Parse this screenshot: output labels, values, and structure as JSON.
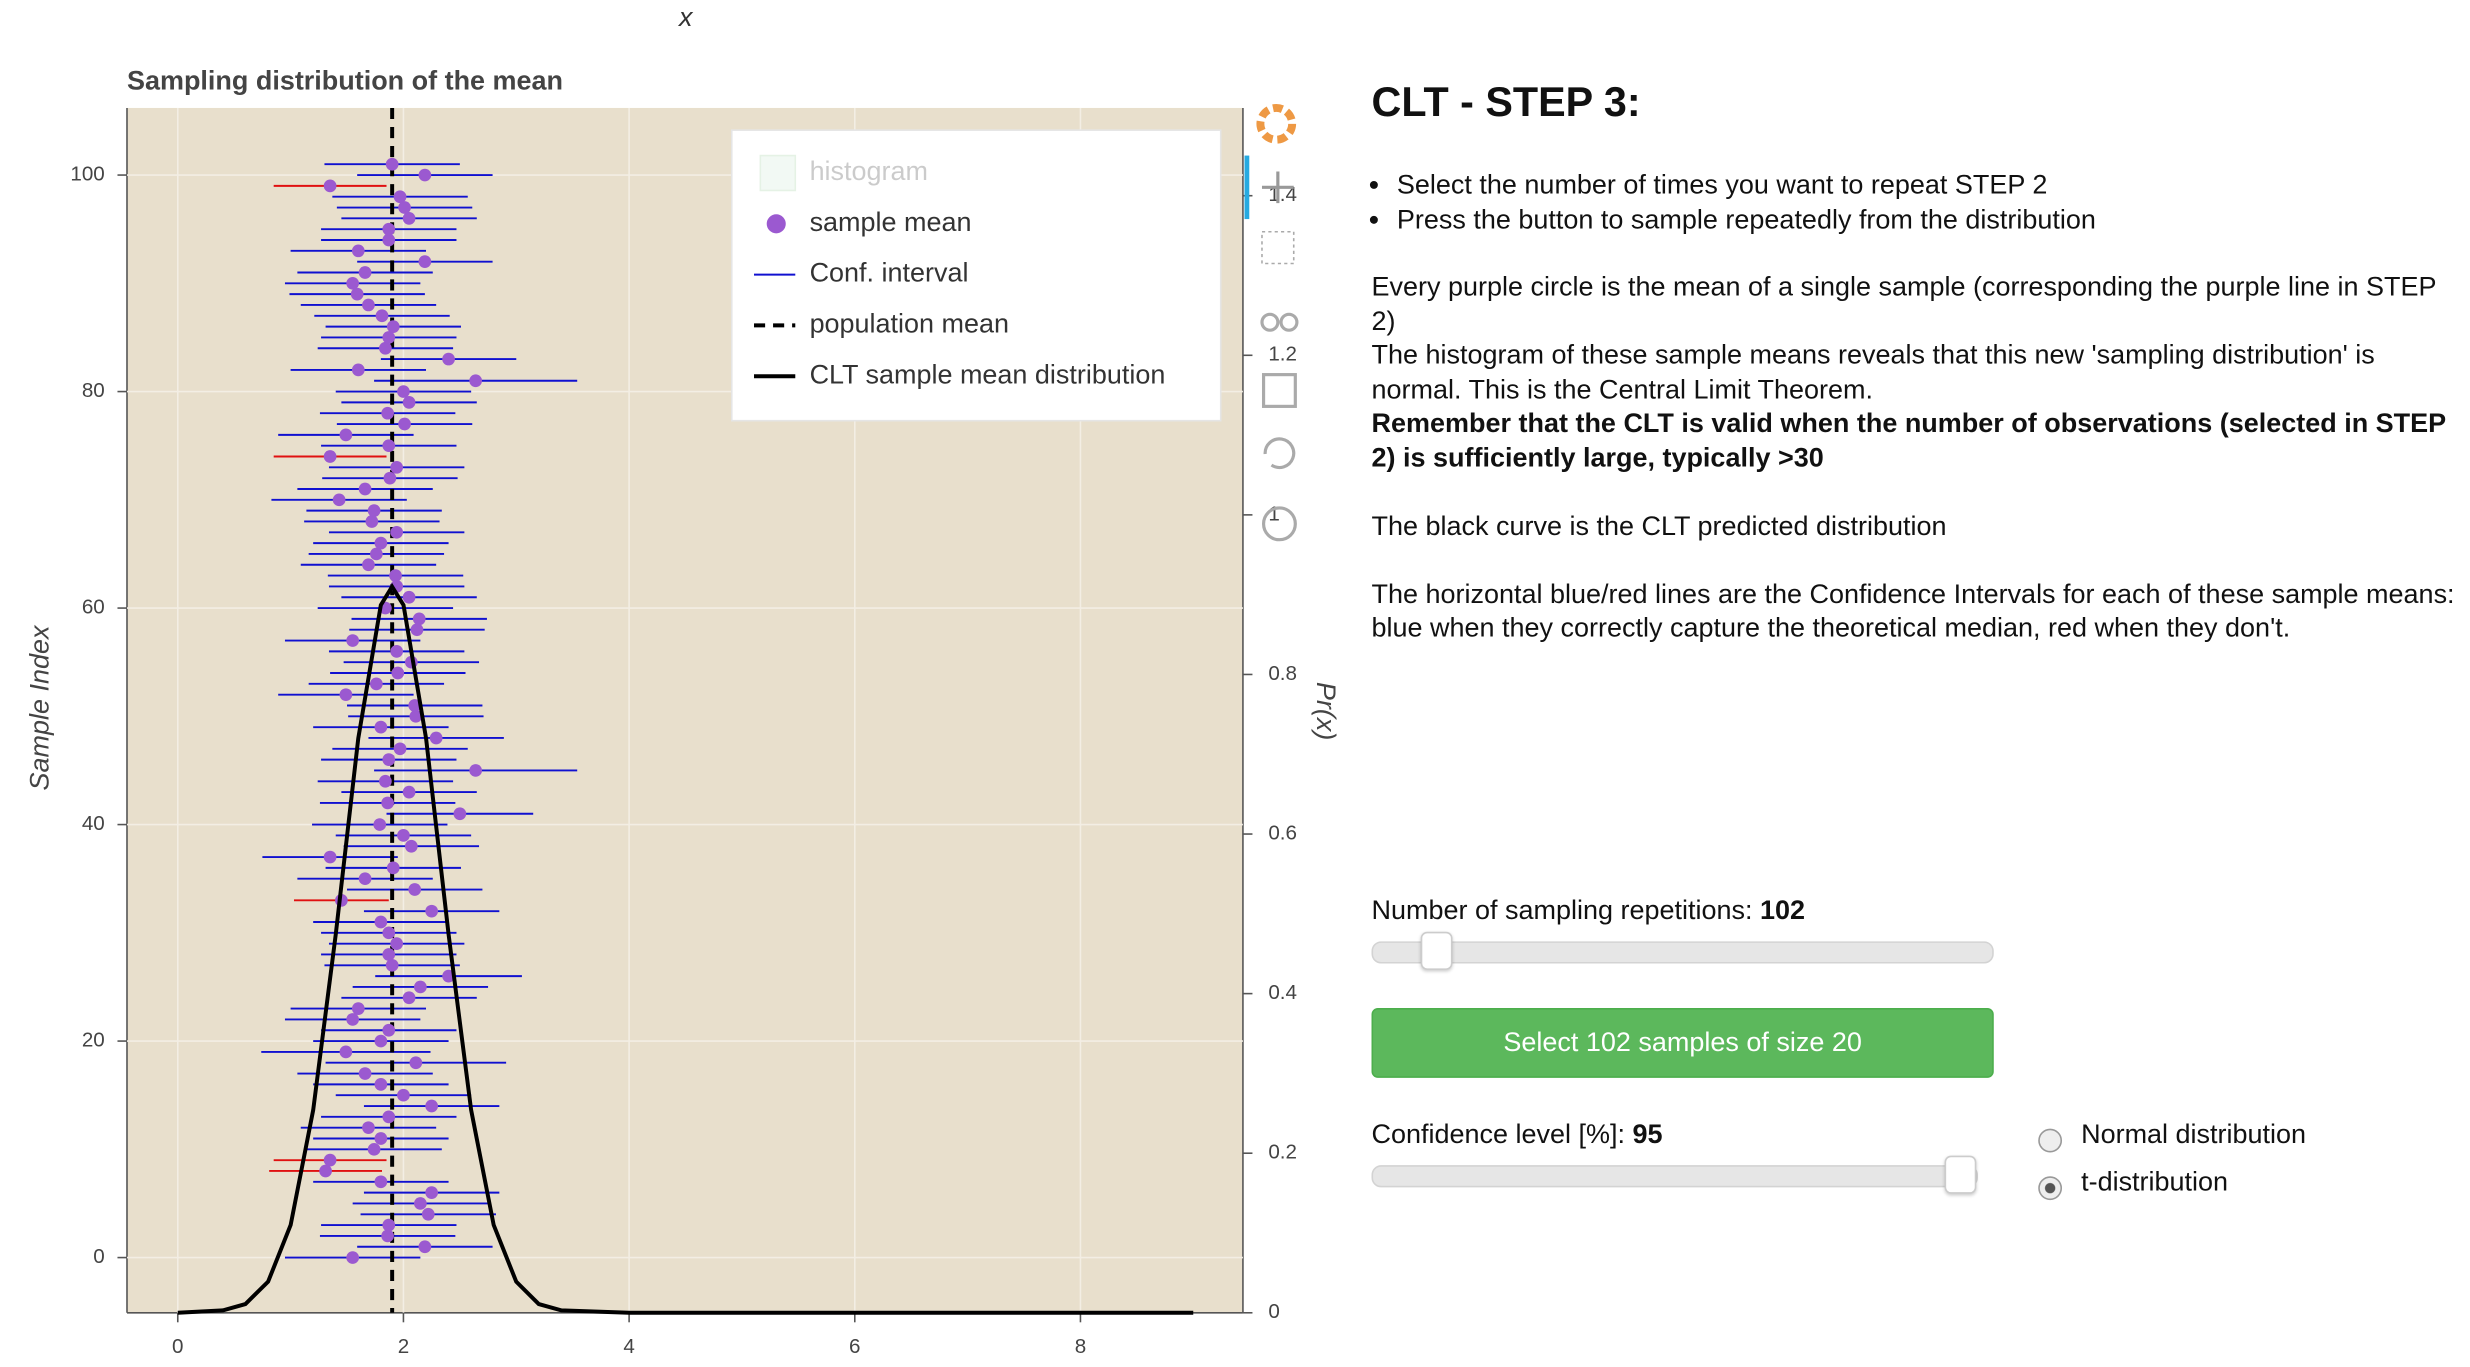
{
  "chart_data": {
    "type": "errorbar",
    "title": "Sampling distribution of the mean",
    "xlabel": "x",
    "ylabel": "Sample Index",
    "y2label": "Pr(x)",
    "xlim": [
      -0.45,
      9.44
    ],
    "ylim": [
      -5.1,
      106.2
    ],
    "y2lim": [
      0,
      1.51
    ],
    "xticks": [
      0,
      2,
      4,
      6,
      8
    ],
    "yticks": [
      0,
      20,
      40,
      60,
      80,
      100
    ],
    "y2ticks": [
      0,
      0.2,
      0.4,
      0.6,
      0.8,
      1,
      1.2,
      1.4
    ],
    "grid": true,
    "legend": "top-right",
    "background": "#e8dfcc",
    "series": [
      {
        "name": "histogram",
        "color": "#cfe8d4",
        "visible": false
      },
      {
        "name": "sample mean",
        "color": "#9b59d0",
        "x": [
          1.55,
          2.19,
          1.86,
          1.87,
          2.22,
          2.15,
          2.25,
          1.8,
          1.31,
          1.35,
          1.74,
          1.8,
          1.69,
          1.87,
          2.25,
          2.0,
          1.8,
          1.66,
          2.11,
          1.49,
          1.8,
          1.87,
          1.55,
          1.6,
          2.05,
          2.15,
          2.4,
          1.9,
          1.87,
          1.94,
          1.87,
          1.8,
          2.25,
          1.45,
          2.1,
          1.66,
          1.91,
          1.35,
          2.07,
          2.0,
          1.79,
          2.5,
          1.86,
          2.05,
          1.84,
          2.64,
          1.87,
          1.97,
          2.29,
          1.8,
          2.11,
          2.1,
          1.49,
          1.76,
          1.95,
          2.07,
          1.94,
          1.55,
          2.12,
          2.14,
          1.84,
          2.05,
          1.94,
          1.93,
          1.69,
          1.76,
          1.8,
          1.94,
          1.72,
          1.74,
          1.43,
          1.66,
          1.88,
          1.94,
          1.35,
          1.87,
          1.49,
          2.01,
          1.86,
          2.05,
          2.0,
          2.64,
          1.6,
          2.4,
          1.84,
          1.87,
          1.91,
          1.81,
          1.69,
          1.59,
          1.55,
          1.66,
          2.19,
          1.6,
          1.87,
          1.87,
          2.05,
          2.01,
          1.97,
          1.35,
          2.19,
          1.9
        ],
        "y": [
          0,
          1,
          2,
          3,
          4,
          5,
          6,
          7,
          8,
          9,
          10,
          11,
          12,
          13,
          14,
          15,
          16,
          17,
          18,
          19,
          20,
          21,
          22,
          23,
          24,
          25,
          26,
          27,
          28,
          29,
          30,
          31,
          32,
          33,
          34,
          35,
          36,
          37,
          38,
          39,
          40,
          41,
          42,
          43,
          44,
          45,
          46,
          47,
          48,
          49,
          50,
          51,
          52,
          53,
          54,
          55,
          56,
          57,
          58,
          59,
          60,
          61,
          62,
          63,
          64,
          65,
          66,
          67,
          68,
          69,
          70,
          71,
          72,
          73,
          74,
          75,
          76,
          77,
          78,
          79,
          80,
          81,
          82,
          83,
          84,
          85,
          86,
          87,
          88,
          89,
          90,
          91,
          92,
          93,
          94,
          95,
          96,
          97,
          98,
          99,
          100,
          101
        ]
      },
      {
        "name": "Conf. interval",
        "color": "#1010d0",
        "miss_color": "#e01010",
        "errors": [
          0.6,
          0.6,
          0.6,
          0.6,
          0.6,
          0.6,
          0.6,
          0.6,
          0.5,
          0.5,
          0.6,
          0.6,
          0.6,
          0.6,
          0.6,
          0.6,
          0.6,
          0.6,
          0.8,
          0.75,
          0.6,
          0.6,
          0.6,
          0.6,
          0.6,
          0.6,
          0.65,
          0.6,
          0.6,
          0.6,
          0.6,
          0.6,
          0.6,
          0.42,
          0.6,
          0.6,
          0.6,
          0.6,
          0.6,
          0.6,
          0.6,
          0.65,
          0.6,
          0.6,
          0.6,
          0.9,
          0.6,
          0.6,
          0.6,
          0.6,
          0.6,
          0.6,
          0.6,
          0.6,
          0.6,
          0.6,
          0.6,
          0.6,
          0.6,
          0.6,
          0.6,
          0.6,
          0.6,
          0.6,
          0.6,
          0.6,
          0.6,
          0.6,
          0.6,
          0.6,
          0.6,
          0.6,
          0.6,
          0.6,
          0.5,
          0.6,
          0.6,
          0.6,
          0.6,
          0.6,
          0.6,
          0.9,
          0.6,
          0.6,
          0.6,
          0.6,
          0.6,
          0.6,
          0.6,
          0.6,
          0.6,
          0.6,
          0.6,
          0.6,
          0.6,
          0.6,
          0.6,
          0.6,
          0.6,
          0.5,
          0.6,
          0.6
        ]
      },
      {
        "name": "population mean",
        "color": "#000000",
        "value": 1.9
      },
      {
        "name": "CLT sample mean distribution",
        "color": "#000000",
        "axis": "y2",
        "x": [
          0,
          0.4,
          0.6,
          0.8,
          1.0,
          1.2,
          1.4,
          1.6,
          1.8,
          1.9,
          2.0,
          2.2,
          2.4,
          2.6,
          2.8,
          3.0,
          3.2,
          3.4,
          4.0,
          9.0
        ],
        "y": [
          0,
          0.003,
          0.011,
          0.039,
          0.11,
          0.254,
          0.474,
          0.72,
          0.887,
          0.91,
          0.887,
          0.72,
          0.474,
          0.254,
          0.11,
          0.039,
          0.011,
          0.003,
          0,
          0
        ]
      }
    ]
  },
  "panel": {
    "heading": "CLT - STEP 3:",
    "bullets": [
      "Select the number of times you want to repeat STEP 2",
      "Press the button to sample repeatedly from the distribution"
    ],
    "paragraphs": [
      "Every purple circle is the mean of a single sample (corresponding the purple line in STEP 2)",
      "The histogram of these sample means reveals that this new 'sampling distribution' is normal. This is the Central Limit Theorem."
    ],
    "note": "Remember that the CLT is valid when the number of observations (selected in STEP 2) is sufficiently large, typically >30",
    "curve_text": "The black curve is the CLT predicted distribution",
    "ci_text": "The horizontal blue/red lines are the Confidence Intervals for each of these sample means: blue when they correctly capture the theoretical median, red when they don't."
  },
  "controls": {
    "repetitions_label": "Number of sampling repetitions:",
    "repetitions": 102,
    "button": "Select 102 samples of size 20",
    "confidence_label": "Confidence level [%]:",
    "confidence": 95,
    "distributions": [
      "Normal distribution",
      "t-distribution"
    ],
    "selected_distribution": 1
  }
}
